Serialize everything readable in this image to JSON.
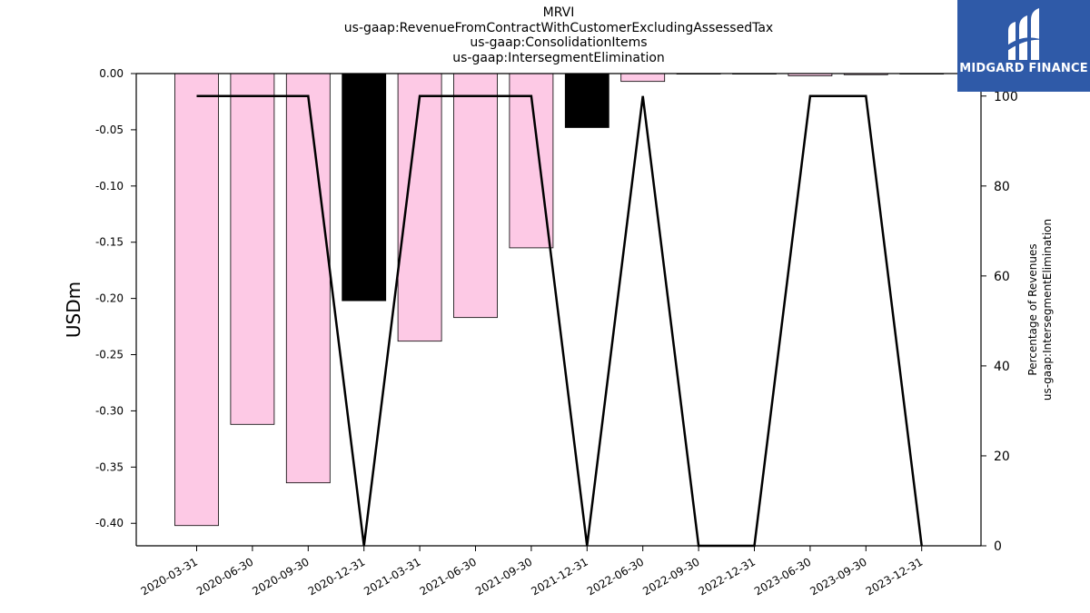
{
  "chart_data": {
    "type": "bar",
    "title_lines": [
      "MRVI",
      "us-gaap:RevenueFromContractWithCustomerExcludingAssessedTax",
      "us-gaap:ConsolidationItems",
      "us-gaap:IntersegmentElimination"
    ],
    "ylabel": "USDm",
    "y2label_lines": [
      "Percentage of Revenues",
      "us-gaap:IntersegmentElimination"
    ],
    "categories": [
      "2020-03-31",
      "2020-06-30",
      "2020-09-30",
      "2020-12-31",
      "2021-03-31",
      "2021-06-30",
      "2021-09-30",
      "2021-12-31",
      "2022-06-30",
      "2022-09-30",
      "2022-12-31",
      "2023-06-30",
      "2023-09-30",
      "2023-12-31"
    ],
    "bars": [
      {
        "value": -0.402,
        "color": "#fdc9e5"
      },
      {
        "value": -0.312,
        "color": "#fdc9e5"
      },
      {
        "value": -0.364,
        "color": "#fdc9e5"
      },
      {
        "value": -0.202,
        "color": "#000000"
      },
      {
        "value": -0.238,
        "color": "#fdc9e5"
      },
      {
        "value": -0.217,
        "color": "#fdc9e5"
      },
      {
        "value": -0.155,
        "color": "#fdc9e5"
      },
      {
        "value": -0.048,
        "color": "#000000"
      },
      {
        "value": -0.007,
        "color": "#fdc9e5"
      },
      {
        "value": 0.0,
        "color": "#fdc9e5"
      },
      {
        "value": 0.0,
        "color": "#fdc9e5"
      },
      {
        "value": -0.002,
        "color": "#fdc9e5"
      },
      {
        "value": -0.001,
        "color": "#fdc9e5"
      },
      {
        "value": 0.0,
        "color": "#fdc9e5"
      }
    ],
    "line_series": {
      "values": [
        100,
        100,
        100,
        0,
        100,
        100,
        100,
        0,
        100,
        0,
        0,
        100,
        100,
        0
      ],
      "color": "#000000"
    },
    "ylim": [
      -0.42,
      0.0
    ],
    "y_ticks": [
      0.0,
      -0.05,
      -0.1,
      -0.15,
      -0.2,
      -0.25,
      -0.3,
      -0.35,
      -0.4
    ],
    "y_tick_labels": [
      "0.00",
      "-0.05",
      "-0.10",
      "-0.15",
      "-0.20",
      "-0.25",
      "-0.30",
      "-0.35",
      "-0.40"
    ],
    "y2lim": [
      0,
      105
    ],
    "y2_ticks": [
      0,
      20,
      40,
      60,
      80,
      100
    ],
    "y2_tick_labels": [
      "0",
      "20",
      "40",
      "60",
      "80",
      "100"
    ],
    "grid": false
  },
  "logo": {
    "text": "MIDGARD FINANCE",
    "background": "#2f5aa8"
  }
}
